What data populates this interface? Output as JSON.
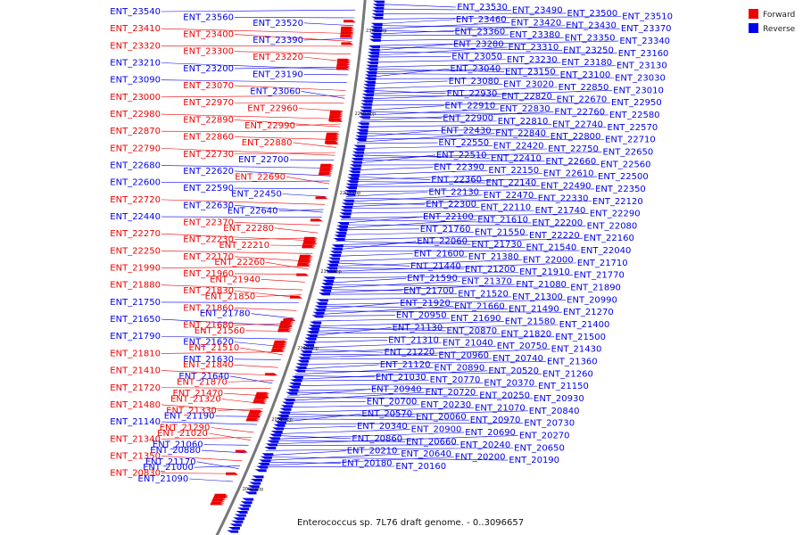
{
  "caption": "Enterococcus sp. 7L76 draft genome. - 0..3096657",
  "legend": [
    {
      "label": "Forward",
      "color": "#ee0000"
    },
    {
      "label": "Reverse",
      "color": "#0000ee"
    }
  ],
  "scale_ticks": [
    "2300 kbp",
    "2250 kbp",
    "2200 kbp",
    "2150 kbp",
    "2100 kbp",
    "2050 kbp",
    "2000 kbp"
  ],
  "colors": {
    "forward": "#ee0000",
    "reverse": "#0000ee",
    "backbone": "#777777"
  },
  "left_labels": [
    {
      "text": "ENT_23540",
      "s": "reverse"
    },
    {
      "text": "ENT_23560",
      "s": "reverse"
    },
    {
      "text": "ENT_23520",
      "s": "reverse"
    },
    {
      "text": "ENT_23410",
      "s": "forward"
    },
    {
      "text": "ENT_23400",
      "s": "forward"
    },
    {
      "text": "ENT_23390",
      "s": "reverse"
    },
    {
      "text": "ENT_23320",
      "s": "forward"
    },
    {
      "text": "ENT_23300",
      "s": "forward"
    },
    {
      "text": "ENT_23220",
      "s": "forward"
    },
    {
      "text": "ENT_23210",
      "s": "reverse"
    },
    {
      "text": "ENT_23200",
      "s": "reverse"
    },
    {
      "text": "ENT_23190",
      "s": "reverse"
    },
    {
      "text": "ENT_23090",
      "s": "reverse"
    },
    {
      "text": "ENT_23070",
      "s": "forward"
    },
    {
      "text": "ENT_23060",
      "s": "reverse"
    },
    {
      "text": "ENT_23000",
      "s": "forward"
    },
    {
      "text": "ENT_22970",
      "s": "forward"
    },
    {
      "text": "ENT_22960",
      "s": "forward"
    },
    {
      "text": "ENT_22980",
      "s": "forward"
    },
    {
      "text": "ENT_22890",
      "s": "forward"
    },
    {
      "text": "ENT_22990",
      "s": "forward"
    },
    {
      "text": "ENT_22870",
      "s": "forward"
    },
    {
      "text": "ENT_22860",
      "s": "forward"
    },
    {
      "text": "ENT_22880",
      "s": "forward"
    },
    {
      "text": "ENT_22790",
      "s": "forward"
    },
    {
      "text": "ENT_22730",
      "s": "forward"
    },
    {
      "text": "ENT_22700",
      "s": "reverse"
    },
    {
      "text": "ENT_22680",
      "s": "reverse"
    },
    {
      "text": "ENT_22620",
      "s": "reverse"
    },
    {
      "text": "ENT_22690",
      "s": "forward"
    },
    {
      "text": "ENT_22600",
      "s": "reverse"
    },
    {
      "text": "ENT_22590",
      "s": "reverse"
    },
    {
      "text": "ENT_22450",
      "s": "reverse"
    },
    {
      "text": "ENT_22720",
      "s": "forward"
    },
    {
      "text": "ENT_22630",
      "s": "reverse"
    },
    {
      "text": "ENT_22640",
      "s": "reverse"
    },
    {
      "text": "ENT_22440",
      "s": "reverse"
    },
    {
      "text": "ENT_22370",
      "s": "forward"
    },
    {
      "text": "ENT_22280",
      "s": "forward"
    },
    {
      "text": "ENT_22270",
      "s": "forward"
    },
    {
      "text": "ENT_22230",
      "s": "forward"
    },
    {
      "text": "ENT_22210",
      "s": "forward"
    },
    {
      "text": "ENT_22250",
      "s": "forward"
    },
    {
      "text": "ENT_22170",
      "s": "forward"
    },
    {
      "text": "ENT_22260",
      "s": "forward"
    },
    {
      "text": "ENT_21990",
      "s": "forward"
    },
    {
      "text": "ENT_21960",
      "s": "forward"
    },
    {
      "text": "ENT_21940",
      "s": "forward"
    },
    {
      "text": "ENT_21880",
      "s": "forward"
    },
    {
      "text": "ENT_21830",
      "s": "forward"
    },
    {
      "text": "ENT_21850",
      "s": "forward"
    },
    {
      "text": "ENT_21750",
      "s": "reverse"
    },
    {
      "text": "ENT_21860",
      "s": "forward"
    },
    {
      "text": "ENT_21780",
      "s": "reverse"
    },
    {
      "text": "ENT_21650",
      "s": "reverse"
    },
    {
      "text": "ENT_21680",
      "s": "forward"
    },
    {
      "text": "ENT_21560",
      "s": "forward"
    },
    {
      "text": "ENT_21790",
      "s": "reverse"
    },
    {
      "text": "ENT_21620",
      "s": "reverse"
    },
    {
      "text": "ENT_21510",
      "s": "forward"
    },
    {
      "text": "ENT_21810",
      "s": "forward"
    },
    {
      "text": "ENT_21630",
      "s": "reverse"
    },
    {
      "text": "ENT_21840",
      "s": "forward"
    },
    {
      "text": "ENT_21410",
      "s": "forward"
    },
    {
      "text": "ENT_21640",
      "s": "reverse"
    },
    {
      "text": "ENT_21870",
      "s": "forward"
    },
    {
      "text": "ENT_21720",
      "s": "forward"
    },
    {
      "text": "ENT_21470",
      "s": "forward"
    },
    {
      "text": "ENT_21320",
      "s": "forward"
    },
    {
      "text": "ENT_21480",
      "s": "forward"
    },
    {
      "text": "ENT_21330",
      "s": "forward"
    },
    {
      "text": "ENT_21190",
      "s": "reverse"
    },
    {
      "text": "ENT_21140",
      "s": "reverse"
    },
    {
      "text": "ENT_21290",
      "s": "forward"
    },
    {
      "text": "ENT_21020",
      "s": "forward"
    },
    {
      "text": "ENT_21340",
      "s": "forward"
    },
    {
      "text": "ENT_21060",
      "s": "reverse"
    },
    {
      "text": "ENT_20880",
      "s": "reverse"
    },
    {
      "text": "ENT_21350",
      "s": "forward"
    },
    {
      "text": "ENT_21170",
      "s": "reverse"
    },
    {
      "text": "ENT_21000",
      "s": "reverse"
    },
    {
      "text": "ENT_20830",
      "s": "forward"
    },
    {
      "text": "ENT_21090",
      "s": "reverse"
    }
  ],
  "right_labels": [
    {
      "text": "ENT_23530",
      "s": "reverse"
    },
    {
      "text": "ENT_23490",
      "s": "reverse"
    },
    {
      "text": "ENT_23500",
      "s": "reverse"
    },
    {
      "text": "ENT_23510",
      "s": "reverse"
    },
    {
      "text": "ENT_23460",
      "s": "reverse"
    },
    {
      "text": "ENT_23420",
      "s": "reverse"
    },
    {
      "text": "ENT_23430",
      "s": "reverse"
    },
    {
      "text": "ENT_23370",
      "s": "reverse"
    },
    {
      "text": "ENT_23360",
      "s": "reverse"
    },
    {
      "text": "ENT_23380",
      "s": "reverse"
    },
    {
      "text": "ENT_23350",
      "s": "reverse"
    },
    {
      "text": "ENT_23340",
      "s": "reverse"
    },
    {
      "text": "ENT_23280",
      "s": "reverse"
    },
    {
      "text": "ENT_23310",
      "s": "reverse"
    },
    {
      "text": "ENT_23250",
      "s": "reverse"
    },
    {
      "text": "ENT_23160",
      "s": "reverse"
    },
    {
      "text": "ENT_23050",
      "s": "reverse"
    },
    {
      "text": "ENT_23230",
      "s": "reverse"
    },
    {
      "text": "ENT_23180",
      "s": "reverse"
    },
    {
      "text": "ENT_23130",
      "s": "reverse"
    },
    {
      "text": "ENT_23040",
      "s": "reverse"
    },
    {
      "text": "ENT_23150",
      "s": "reverse"
    },
    {
      "text": "ENT_23100",
      "s": "reverse"
    },
    {
      "text": "ENT_23030",
      "s": "reverse"
    },
    {
      "text": "ENT_23080",
      "s": "reverse"
    },
    {
      "text": "ENT_23020",
      "s": "reverse"
    },
    {
      "text": "ENT_22850",
      "s": "reverse"
    },
    {
      "text": "ENT_23010",
      "s": "reverse"
    },
    {
      "text": "ENT_22930",
      "s": "reverse"
    },
    {
      "text": "ENT_22820",
      "s": "reverse"
    },
    {
      "text": "ENT_22670",
      "s": "reverse"
    },
    {
      "text": "ENT_22950",
      "s": "reverse"
    },
    {
      "text": "ENT_22910",
      "s": "reverse"
    },
    {
      "text": "ENT_22830",
      "s": "reverse"
    },
    {
      "text": "ENT_22760",
      "s": "reverse"
    },
    {
      "text": "ENT_22580",
      "s": "reverse"
    },
    {
      "text": "ENT_22900",
      "s": "reverse"
    },
    {
      "text": "ENT_22810",
      "s": "reverse"
    },
    {
      "text": "ENT_22740",
      "s": "reverse"
    },
    {
      "text": "ENT_22570",
      "s": "reverse"
    },
    {
      "text": "ENT_22430",
      "s": "reverse"
    },
    {
      "text": "ENT_22840",
      "s": "reverse"
    },
    {
      "text": "ENT_22800",
      "s": "reverse"
    },
    {
      "text": "ENT_22710",
      "s": "reverse"
    },
    {
      "text": "ENT_22550",
      "s": "reverse"
    },
    {
      "text": "ENT_22420",
      "s": "reverse"
    },
    {
      "text": "ENT_22750",
      "s": "reverse"
    },
    {
      "text": "ENT_22650",
      "s": "reverse"
    },
    {
      "text": "ENT_22510",
      "s": "reverse"
    },
    {
      "text": "ENT_22410",
      "s": "reverse"
    },
    {
      "text": "ENT_22660",
      "s": "reverse"
    },
    {
      "text": "ENT_22560",
      "s": "reverse"
    },
    {
      "text": "ENT_22390",
      "s": "reverse"
    },
    {
      "text": "ENT_22150",
      "s": "reverse"
    },
    {
      "text": "ENT_22610",
      "s": "reverse"
    },
    {
      "text": "ENT_22500",
      "s": "reverse"
    },
    {
      "text": "ENT_22360",
      "s": "reverse"
    },
    {
      "text": "ENT_22140",
      "s": "reverse"
    },
    {
      "text": "ENT_22490",
      "s": "reverse"
    },
    {
      "text": "ENT_22350",
      "s": "reverse"
    },
    {
      "text": "ENT_22130",
      "s": "reverse"
    },
    {
      "text": "ENT_22470",
      "s": "reverse"
    },
    {
      "text": "ENT_22330",
      "s": "reverse"
    },
    {
      "text": "ENT_22120",
      "s": "reverse"
    },
    {
      "text": "ENT_22300",
      "s": "reverse"
    },
    {
      "text": "ENT_22110",
      "s": "reverse"
    },
    {
      "text": "ENT_21740",
      "s": "reverse"
    },
    {
      "text": "ENT_22290",
      "s": "reverse"
    },
    {
      "text": "ENT_22100",
      "s": "reverse"
    },
    {
      "text": "ENT_21610",
      "s": "reverse"
    },
    {
      "text": "ENT_22200",
      "s": "reverse"
    },
    {
      "text": "ENT_22080",
      "s": "reverse"
    },
    {
      "text": "ENT_21760",
      "s": "reverse"
    },
    {
      "text": "ENT_21550",
      "s": "reverse"
    },
    {
      "text": "ENT_22220",
      "s": "reverse"
    },
    {
      "text": "ENT_22160",
      "s": "reverse"
    },
    {
      "text": "ENT_22060",
      "s": "reverse"
    },
    {
      "text": "ENT_21730",
      "s": "reverse"
    },
    {
      "text": "ENT_21540",
      "s": "reverse"
    },
    {
      "text": "ENT_22040",
      "s": "reverse"
    },
    {
      "text": "ENT_21600",
      "s": "reverse"
    },
    {
      "text": "ENT_21380",
      "s": "reverse"
    },
    {
      "text": "ENT_22000",
      "s": "reverse"
    },
    {
      "text": "ENT_21710",
      "s": "reverse"
    },
    {
      "text": "ENT_21440",
      "s": "reverse"
    },
    {
      "text": "ENT_21200",
      "s": "reverse"
    },
    {
      "text": "ENT_21910",
      "s": "reverse"
    },
    {
      "text": "ENT_21770",
      "s": "reverse"
    },
    {
      "text": "ENT_21590",
      "s": "reverse"
    },
    {
      "text": "ENT_21370",
      "s": "reverse"
    },
    {
      "text": "ENT_21080",
      "s": "reverse"
    },
    {
      "text": "ENT_21890",
      "s": "reverse"
    },
    {
      "text": "ENT_21700",
      "s": "reverse"
    },
    {
      "text": "ENT_21520",
      "s": "reverse"
    },
    {
      "text": "ENT_21300",
      "s": "reverse"
    },
    {
      "text": "ENT_20990",
      "s": "reverse"
    },
    {
      "text": "ENT_21920",
      "s": "reverse"
    },
    {
      "text": "ENT_21660",
      "s": "reverse"
    },
    {
      "text": "ENT_21490",
      "s": "reverse"
    },
    {
      "text": "ENT_21270",
      "s": "reverse"
    },
    {
      "text": "ENT_20950",
      "s": "reverse"
    },
    {
      "text": "ENT_21690",
      "s": "reverse"
    },
    {
      "text": "ENT_21580",
      "s": "reverse"
    },
    {
      "text": "ENT_21400",
      "s": "reverse"
    },
    {
      "text": "ENT_21130",
      "s": "reverse"
    },
    {
      "text": "ENT_20870",
      "s": "reverse"
    },
    {
      "text": "ENT_21820",
      "s": "reverse"
    },
    {
      "text": "ENT_21500",
      "s": "reverse"
    },
    {
      "text": "ENT_21310",
      "s": "reverse"
    },
    {
      "text": "ENT_21040",
      "s": "reverse"
    },
    {
      "text": "ENT_20750",
      "s": "reverse"
    },
    {
      "text": "ENT_21430",
      "s": "reverse"
    },
    {
      "text": "ENT_21220",
      "s": "reverse"
    },
    {
      "text": "ENT_20960",
      "s": "reverse"
    },
    {
      "text": "ENT_20740",
      "s": "reverse"
    },
    {
      "text": "ENT_21360",
      "s": "reverse"
    },
    {
      "text": "ENT_21120",
      "s": "reverse"
    },
    {
      "text": "ENT_20890",
      "s": "reverse"
    },
    {
      "text": "ENT_20520",
      "s": "reverse"
    },
    {
      "text": "ENT_21260",
      "s": "reverse"
    },
    {
      "text": "ENT_21030",
      "s": "reverse"
    },
    {
      "text": "ENT_20770",
      "s": "reverse"
    },
    {
      "text": "ENT_20370",
      "s": "reverse"
    },
    {
      "text": "ENT_21150",
      "s": "reverse"
    },
    {
      "text": "ENT_20940",
      "s": "reverse"
    },
    {
      "text": "ENT_20720",
      "s": "reverse"
    },
    {
      "text": "ENT_20250",
      "s": "reverse"
    },
    {
      "text": "ENT_20930",
      "s": "reverse"
    },
    {
      "text": "ENT_20700",
      "s": "reverse"
    },
    {
      "text": "ENT_20230",
      "s": "reverse"
    },
    {
      "text": "ENT_21070",
      "s": "reverse"
    },
    {
      "text": "ENT_20840",
      "s": "reverse"
    },
    {
      "text": "ENT_20570",
      "s": "reverse"
    },
    {
      "text": "ENT_20060",
      "s": "reverse"
    },
    {
      "text": "ENT_20970",
      "s": "reverse"
    },
    {
      "text": "ENT_20730",
      "s": "reverse"
    },
    {
      "text": "ENT_20340",
      "s": "reverse"
    },
    {
      "text": "ENT_20900",
      "s": "reverse"
    },
    {
      "text": "ENT_20690",
      "s": "reverse"
    },
    {
      "text": "ENT_20270",
      "s": "reverse"
    },
    {
      "text": "ENT_20860",
      "s": "reverse"
    },
    {
      "text": "ENT_20660",
      "s": "reverse"
    },
    {
      "text": "ENT_20240",
      "s": "reverse"
    },
    {
      "text": "ENT_20650",
      "s": "reverse"
    },
    {
      "text": "ENT_20210",
      "s": "reverse"
    },
    {
      "text": "ENT_20640",
      "s": "reverse"
    },
    {
      "text": "ENT_20200",
      "s": "reverse"
    },
    {
      "text": "ENT_20190",
      "s": "reverse"
    },
    {
      "text": "ENT_20180",
      "s": "reverse"
    },
    {
      "text": "ENT_20160",
      "s": "reverse"
    }
  ]
}
